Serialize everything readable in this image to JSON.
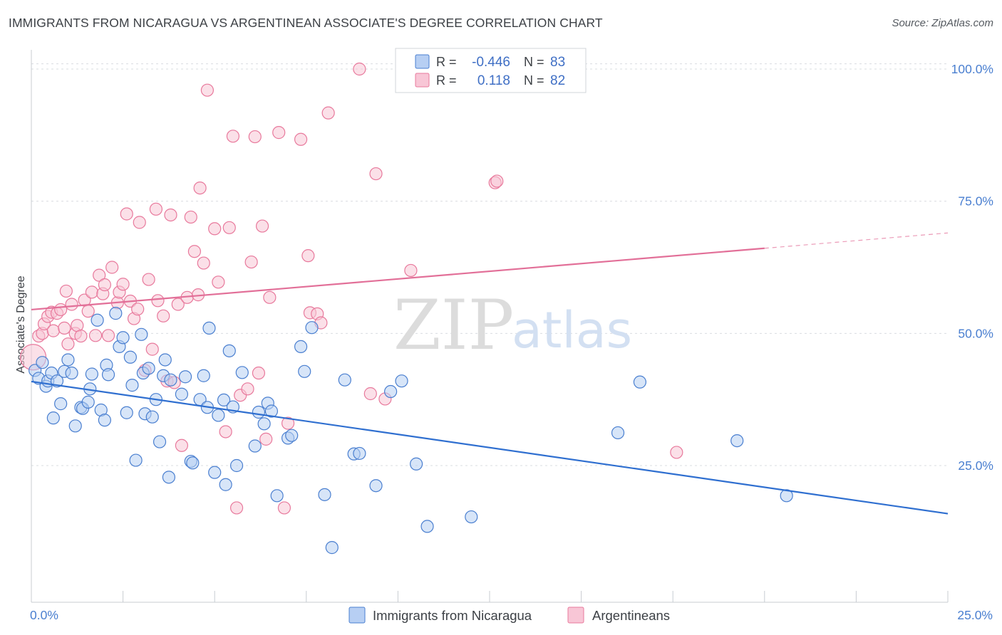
{
  "title": "IMMIGRANTS FROM NICARAGUA VS ARGENTINEAN ASSOCIATE'S DEGREE CORRELATION CHART",
  "source": "Source: ZipAtlas.com",
  "watermark": {
    "zip": "ZIP",
    "atlas": "atlas"
  },
  "colors": {
    "blue": "#4a7fd0",
    "blue_fill": "#b7cff3",
    "blue_line": "#2f6fd0",
    "pink": "#e8799c",
    "pink_fill": "#f8c6d6",
    "pink_line": "#e26f98",
    "grid": "#d9dce1",
    "axis_text": "#4a7fd0"
  },
  "chart_data": {
    "type": "scatter",
    "title": "IMMIGRANTS FROM NICARAGUA VS ARGENTINEAN ASSOCIATE'S DEGREE CORRELATION CHART",
    "xlabel": "",
    "ylabel": "Associate's Degree",
    "xlim": [
      0,
      25
    ],
    "ylim": [
      0,
      102
    ],
    "x_ticks": [
      0,
      25
    ],
    "x_tick_labels": [
      "0.0%",
      "25.0%"
    ],
    "y_ticks": [
      25,
      50,
      75,
      100
    ],
    "y_tick_labels": [
      "25.0%",
      "50.0%",
      "75.0%",
      "100.0%"
    ],
    "legend": [
      {
        "name": "Immigrants from Nicaragua",
        "r_label": "R =",
        "r": "-0.446",
        "n_label": "N =",
        "n": "83"
      },
      {
        "name": "Argentineans",
        "r_label": "R =",
        "r": "0.118",
        "n_label": "N =",
        "n": "82"
      }
    ],
    "series": [
      {
        "name": "Immigrants from Nicaragua",
        "color": "blue",
        "trend": {
          "x0": 0,
          "y0": 40.9,
          "x1": 25,
          "y1": 15.9
        },
        "points": [
          [
            0.1,
            43
          ],
          [
            0.2,
            41.5
          ],
          [
            0.3,
            44.5
          ],
          [
            0.4,
            40
          ],
          [
            0.45,
            41
          ],
          [
            0.55,
            42.5
          ],
          [
            0.6,
            34
          ],
          [
            0.7,
            41
          ],
          [
            0.8,
            36.7
          ],
          [
            0.9,
            42.8
          ],
          [
            1.0,
            45
          ],
          [
            1.1,
            42.5
          ],
          [
            1.2,
            32.5
          ],
          [
            1.35,
            36
          ],
          [
            1.4,
            35.8
          ],
          [
            1.55,
            37
          ],
          [
            1.6,
            39.5
          ],
          [
            1.65,
            42.3
          ],
          [
            1.8,
            52.5
          ],
          [
            1.9,
            35.5
          ],
          [
            2.0,
            33.6
          ],
          [
            2.05,
            44
          ],
          [
            2.1,
            42.2
          ],
          [
            2.3,
            53.8
          ],
          [
            2.4,
            47.5
          ],
          [
            2.5,
            49.2
          ],
          [
            2.6,
            35
          ],
          [
            2.7,
            45.5
          ],
          [
            2.75,
            40.2
          ],
          [
            2.85,
            26
          ],
          [
            3.0,
            49.8
          ],
          [
            3.05,
            42.5
          ],
          [
            3.1,
            34.8
          ],
          [
            3.2,
            43.4
          ],
          [
            3.3,
            34.2
          ],
          [
            3.4,
            37.5
          ],
          [
            3.5,
            29.5
          ],
          [
            3.6,
            42
          ],
          [
            3.65,
            45
          ],
          [
            3.75,
            22.8
          ],
          [
            3.8,
            41.2
          ],
          [
            4.1,
            38.5
          ],
          [
            4.2,
            41.8
          ],
          [
            4.35,
            25.8
          ],
          [
            4.4,
            25.5
          ],
          [
            4.6,
            37.5
          ],
          [
            4.7,
            42
          ],
          [
            4.8,
            36
          ],
          [
            4.85,
            51
          ],
          [
            5.0,
            23.7
          ],
          [
            5.1,
            34.5
          ],
          [
            5.25,
            37.4
          ],
          [
            5.3,
            21.4
          ],
          [
            5.4,
            46.7
          ],
          [
            5.5,
            36.1
          ],
          [
            5.6,
            25
          ],
          [
            5.75,
            42.6
          ],
          [
            6.1,
            28.7
          ],
          [
            6.2,
            35.1
          ],
          [
            6.35,
            32.9
          ],
          [
            6.45,
            36.8
          ],
          [
            6.55,
            35.3
          ],
          [
            6.7,
            19.3
          ],
          [
            7.0,
            30.2
          ],
          [
            7.1,
            30.7
          ],
          [
            7.35,
            47.5
          ],
          [
            7.45,
            42.8
          ],
          [
            7.65,
            51.1
          ],
          [
            8.0,
            19.5
          ],
          [
            8.2,
            9.5
          ],
          [
            8.55,
            41.2
          ],
          [
            8.8,
            27.2
          ],
          [
            8.95,
            27.3
          ],
          [
            9.4,
            21.2
          ],
          [
            9.8,
            39
          ],
          [
            10.1,
            41
          ],
          [
            10.5,
            25.3
          ],
          [
            10.8,
            13.5
          ],
          [
            12.0,
            15.3
          ],
          [
            16.0,
            31.2
          ],
          [
            16.6,
            40.8
          ],
          [
            19.25,
            29.7
          ],
          [
            20.6,
            19.3
          ]
        ]
      },
      {
        "name": "Argentineans",
        "color": "pink",
        "trend": {
          "x0": 0,
          "y0": 54.5,
          "x1": 20,
          "y1": 66.1,
          "dash_x1": 25,
          "dash_y1": 69
        },
        "points": [
          [
            0.2,
            49.5
          ],
          [
            0.3,
            50
          ],
          [
            0.35,
            51.8
          ],
          [
            0.45,
            53.2
          ],
          [
            0.55,
            54
          ],
          [
            0.6,
            50.5
          ],
          [
            0.7,
            53.8
          ],
          [
            0.8,
            54.5
          ],
          [
            0.9,
            51
          ],
          [
            0.95,
            58
          ],
          [
            1.0,
            48
          ],
          [
            1.1,
            55.5
          ],
          [
            1.2,
            50
          ],
          [
            1.25,
            51.5
          ],
          [
            1.35,
            49.5
          ],
          [
            1.45,
            56.3
          ],
          [
            1.55,
            54.2
          ],
          [
            1.65,
            57.8
          ],
          [
            1.75,
            49.6
          ],
          [
            1.85,
            61
          ],
          [
            1.95,
            57.5
          ],
          [
            2.0,
            59.2
          ],
          [
            2.1,
            49.6
          ],
          [
            2.2,
            62.5
          ],
          [
            2.35,
            55.8
          ],
          [
            2.4,
            57.8
          ],
          [
            2.5,
            59.3
          ],
          [
            2.6,
            72.6
          ],
          [
            2.7,
            56.1
          ],
          [
            2.8,
            52.8
          ],
          [
            2.9,
            54.6
          ],
          [
            2.95,
            71
          ],
          [
            3.1,
            43
          ],
          [
            3.2,
            60.2
          ],
          [
            3.3,
            47
          ],
          [
            3.4,
            73.5
          ],
          [
            3.45,
            56.2
          ],
          [
            3.6,
            53.3
          ],
          [
            3.7,
            41
          ],
          [
            3.8,
            72.4
          ],
          [
            3.9,
            40.7
          ],
          [
            4.0,
            55.5
          ],
          [
            4.1,
            28.8
          ],
          [
            4.25,
            56.8
          ],
          [
            4.35,
            72
          ],
          [
            4.45,
            65.5
          ],
          [
            4.55,
            57.3
          ],
          [
            4.6,
            77.5
          ],
          [
            4.7,
            63.3
          ],
          [
            4.8,
            96
          ],
          [
            5.0,
            69.8
          ],
          [
            5.1,
            59.7
          ],
          [
            5.3,
            31.4
          ],
          [
            5.4,
            70
          ],
          [
            5.5,
            87.3
          ],
          [
            5.6,
            17
          ],
          [
            5.7,
            38.3
          ],
          [
            5.9,
            39.5
          ],
          [
            6.0,
            63.5
          ],
          [
            6.1,
            87.2
          ],
          [
            6.2,
            42.5
          ],
          [
            6.3,
            70.3
          ],
          [
            6.4,
            30
          ],
          [
            6.5,
            56.8
          ],
          [
            6.75,
            88
          ],
          [
            6.9,
            17
          ],
          [
            7.0,
            33
          ],
          [
            7.35,
            86.7
          ],
          [
            7.55,
            64.7
          ],
          [
            7.6,
            53.9
          ],
          [
            7.8,
            53.7
          ],
          [
            7.9,
            52
          ],
          [
            8.1,
            91.7
          ],
          [
            8.95,
            100
          ],
          [
            9.25,
            38.6
          ],
          [
            9.4,
            80.2
          ],
          [
            9.65,
            37.6
          ],
          [
            10.35,
            61.9
          ],
          [
            12.65,
            78.5
          ],
          [
            12.7,
            78.8
          ],
          [
            17.6,
            27.5
          ],
          [
            0.05,
            45.5
          ]
        ]
      }
    ]
  }
}
